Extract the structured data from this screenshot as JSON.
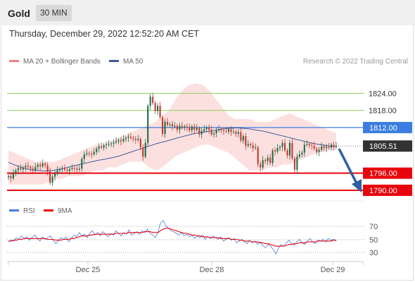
{
  "header": {
    "instrument": "Gold",
    "timeframe": "30 MIN"
  },
  "timestamp": "Thursday, December 29, 2022 12:52:20 AM CET",
  "legend": {
    "ma20_bb": "MA 20 + Bollinger Bands",
    "ma50": "MA 50"
  },
  "credit": "Research © 2022 Trading Central",
  "colors": {
    "up": "#1b6b47",
    "down": "#c0392b",
    "ma50": "#3a5a9a",
    "resistance": "#8dd15a",
    "pivot": "#3b7de0",
    "support": "#e8050b",
    "price": "#333333",
    "rsi": "#4b7be0",
    "rsi_ma": "#e8050b"
  },
  "chart_data": [
    {
      "type": "candlestick",
      "title": "Gold",
      "x_ticks": [
        "Dec 25",
        "Dec 28",
        "Dec 29"
      ],
      "ylim": [
        1788,
        1832
      ],
      "levels": [
        {
          "value": 1824.0,
          "label": "1824.00",
          "kind": "resistance"
        },
        {
          "value": 1818.0,
          "label": "1818.00",
          "kind": "resistance"
        },
        {
          "value": 1812.0,
          "label": "1812.00",
          "kind": "pivot"
        },
        {
          "value": 1805.51,
          "label": "1805.51",
          "kind": "price"
        },
        {
          "value": 1796.0,
          "label": "1796.00",
          "kind": "support"
        },
        {
          "value": 1790.0,
          "label": "1790.00",
          "kind": "support"
        }
      ],
      "close": [
        1795.0,
        1794.2,
        1796.0,
        1797.0,
        1797.8,
        1797.3,
        1798.0,
        1798.6,
        1798.2,
        1797.6,
        1797.0,
        1798.2,
        1799.0,
        1798.4,
        1799.4,
        1798.8,
        1796.6,
        1792.6,
        1794.8,
        1795.8,
        1797.0,
        1797.4,
        1797.6,
        1797.2,
        1796.8,
        1797.4,
        1797.8,
        1797.6,
        1797.2,
        1797.6,
        1801.0,
        1802.6,
        1803.0,
        1802.8,
        1802.6,
        1803.4,
        1804.6,
        1805.4,
        1805.0,
        1805.8,
        1806.0,
        1806.2,
        1806.4,
        1806.8,
        1807.2,
        1807.6,
        1807.2,
        1808.0,
        1808.4,
        1808.8,
        1808.4,
        1808.0,
        1807.6,
        1808.0,
        1805.0,
        1801.8,
        1806.6,
        1819.6,
        1822.8,
        1820.6,
        1817.8,
        1819.6,
        1815.6,
        1809.8,
        1814.0,
        1813.0,
        1813.2,
        1812.4,
        1812.6,
        1811.2,
        1812.6,
        1812.0,
        1812.4,
        1812.0,
        1811.0,
        1812.4,
        1811.2,
        1811.8,
        1809.6,
        1810.8,
        1811.4,
        1812.0,
        1811.2,
        1809.6,
        1810.0,
        1811.0,
        1811.4,
        1811.0,
        1810.8,
        1810.6,
        1811.4,
        1810.4,
        1810.6,
        1809.8,
        1810.4,
        1807.4,
        1809.0,
        1805.6,
        1806.2,
        1805.8,
        1804.8,
        1805.0,
        1799.2,
        1798.0,
        1800.6,
        1800.2,
        1801.4,
        1799.6,
        1804.0,
        1803.6,
        1804.8,
        1805.2,
        1806.6,
        1804.0,
        1802.2,
        1806.6,
        1801.2,
        1797.2,
        1801.8,
        1802.6,
        1803.2,
        1806.0,
        1806.2,
        1805.8,
        1805.6,
        1804.6,
        1803.4,
        1804.2,
        1805.4,
        1804.8,
        1805.2,
        1805.0,
        1806.0,
        1805.4,
        1805.5
      ],
      "ma50": [
        1799.8,
        1799.3,
        1798.8,
        1798.3,
        1797.9,
        1797.6,
        1797.3,
        1797.1,
        1797.0,
        1796.9,
        1796.8,
        1796.8,
        1796.9,
        1797.0,
        1797.2,
        1797.4,
        1797.7,
        1798.0,
        1798.3,
        1798.6,
        1798.9,
        1799.2,
        1799.4,
        1799.7,
        1800.0,
        1800.2,
        1800.5,
        1800.7,
        1800.9,
        1801.2,
        1801.4,
        1801.7,
        1802.0,
        1802.4,
        1802.8,
        1803.2,
        1803.6,
        1804.0,
        1804.4,
        1804.8,
        1805.2,
        1805.6,
        1806.0,
        1806.4,
        1806.7,
        1807.0,
        1807.3,
        1807.7,
        1808.0,
        1808.4,
        1808.7,
        1809.0,
        1809.3,
        1809.6,
        1809.9,
        1810.1,
        1810.3,
        1810.5,
        1810.7,
        1810.9,
        1811.1,
        1811.3,
        1811.5,
        1811.6,
        1811.7,
        1811.8,
        1811.9,
        1811.8,
        1811.7,
        1811.6,
        1811.5,
        1811.3,
        1811.1,
        1810.9,
        1810.7,
        1810.4,
        1810.1,
        1809.8,
        1809.5,
        1809.2,
        1808.9,
        1808.6,
        1808.3,
        1808.0,
        1807.7,
        1807.4,
        1807.1,
        1806.8,
        1806.5,
        1806.3,
        1806.1,
        1805.9,
        1805.7,
        1805.5,
        1805.4,
        1805.3
      ],
      "bb_upper": [
        1804.0,
        1803.0,
        1802.0,
        1801.0,
        1800.0,
        1800.0,
        1800.0,
        1800.0,
        1801.0,
        1802.0,
        1803.0,
        1804.0,
        1805.0,
        1806.0,
        1806.0,
        1807.0,
        1808.0,
        1809.0,
        1810.0,
        1811.0,
        1812.0,
        1813.0,
        1814.0,
        1816.0,
        1818.0,
        1822.0,
        1825.0,
        1827.0,
        1827.5,
        1827.0,
        1825.0,
        1822.0,
        1819.0,
        1816.0,
        1815.0,
        1815.0,
        1815.0,
        1814.0,
        1814.0,
        1814.0,
        1815.0,
        1816.0,
        1817.0,
        1816.0,
        1815.0,
        1814.0,
        1813.0,
        1812.0,
        1811.0,
        1810.0
      ],
      "bb_lower": [
        1792.0,
        1792.0,
        1792.0,
        1792.0,
        1792.0,
        1792.0,
        1793.0,
        1794.0,
        1794.0,
        1795.0,
        1795.0,
        1795.0,
        1796.0,
        1797.0,
        1797.0,
        1798.0,
        1798.0,
        1799.0,
        1800.0,
        1800.0,
        1800.0,
        1798.0,
        1797.0,
        1798.0,
        1800.0,
        1802.0,
        1803.0,
        1804.0,
        1805.0,
        1806.0,
        1806.0,
        1805.0,
        1804.0,
        1803.0,
        1801.0,
        1799.0,
        1797.0,
        1797.0,
        1797.0,
        1798.0,
        1798.0,
        1799.0,
        1799.0,
        1800.0,
        1801.0,
        1802.0,
        1803.0,
        1803.5,
        1804.0,
        1804.0
      ]
    },
    {
      "type": "line",
      "title": "RSI",
      "legend": [
        "RSI",
        "9MA"
      ],
      "y_ticks": [
        "70",
        "50",
        "30"
      ],
      "ylim": [
        20,
        80
      ],
      "rsi": [
        47,
        49,
        48,
        52,
        50,
        54,
        51,
        53,
        49,
        52,
        55,
        51,
        48,
        53,
        50,
        52,
        54,
        49,
        45,
        48,
        52,
        50,
        53,
        47,
        51,
        55,
        53,
        58,
        54,
        56,
        52,
        57,
        60,
        55,
        58,
        54,
        59,
        56,
        53,
        57,
        55,
        60,
        57,
        54,
        58,
        56,
        61,
        55,
        57,
        59,
        56,
        60,
        58,
        62,
        57,
        55,
        52,
        58,
        69,
        72,
        66,
        63,
        60,
        59,
        57,
        55,
        58,
        54,
        56,
        53,
        55,
        51,
        54,
        52,
        55,
        50,
        53,
        51,
        54,
        52,
        50,
        53,
        48,
        50,
        52,
        49,
        51,
        46,
        48,
        50,
        47,
        45,
        49,
        46,
        48,
        44,
        47,
        43,
        40,
        44,
        42,
        38,
        33,
        40,
        44,
        42,
        46,
        49,
        45,
        43,
        47,
        50,
        46,
        44,
        48,
        51,
        47,
        45,
        49,
        48,
        50,
        47,
        51,
        49,
        50,
        48
      ],
      "ma9": [
        48,
        48,
        49,
        49,
        50,
        50,
        51,
        51,
        51,
        51,
        51,
        51,
        51,
        51,
        51,
        50,
        50,
        50,
        49,
        49,
        49,
        50,
        50,
        50,
        51,
        51,
        52,
        53,
        54,
        54,
        54,
        55,
        55,
        56,
        56,
        56,
        56,
        56,
        56,
        56,
        56,
        57,
        57,
        57,
        57,
        57,
        58,
        58,
        58,
        58,
        58,
        58,
        59,
        59,
        59,
        58,
        58,
        58,
        60,
        62,
        63,
        63,
        62,
        61,
        60,
        59,
        58,
        57,
        57,
        56,
        55,
        55,
        54,
        54,
        53,
        53,
        53,
        52,
        52,
        52,
        52,
        51,
        51,
        51,
        51,
        50,
        50,
        50,
        49,
        49,
        48,
        48,
        48,
        47,
        47,
        47,
        46,
        46,
        45,
        45,
        44,
        43,
        42,
        42,
        42,
        42,
        43,
        44,
        44,
        45,
        45,
        46,
        46,
        46,
        47,
        47,
        47,
        47,
        48,
        48,
        48,
        48,
        48,
        48,
        49,
        49
      ]
    }
  ]
}
